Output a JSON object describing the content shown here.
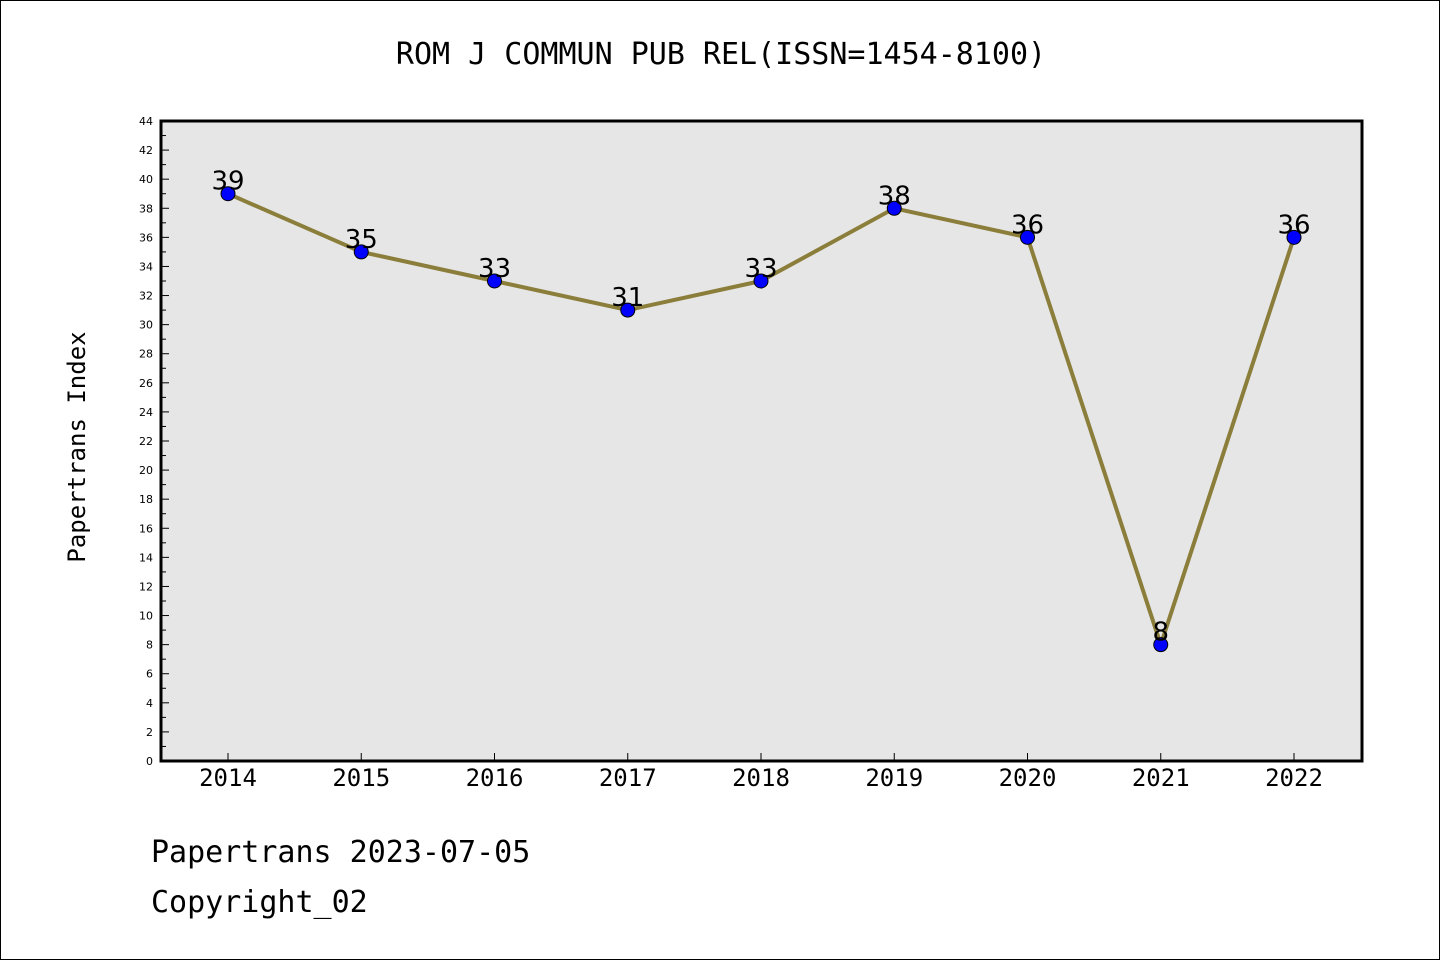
{
  "chart_data": {
    "type": "line",
    "title": "ROM J COMMUN PUB REL(ISSN=1454-8100)",
    "xlabel": "",
    "ylabel": "Papertrans Index",
    "categories": [
      "2014",
      "2015",
      "2016",
      "2017",
      "2018",
      "2019",
      "2020",
      "2021",
      "2022"
    ],
    "series": [
      {
        "values": [
          39,
          35,
          33,
          31,
          33,
          38,
          36,
          8,
          36
        ]
      }
    ],
    "ylim": [
      0,
      44
    ],
    "yticks": [
      0,
      2,
      4,
      6,
      8,
      10,
      12,
      14,
      16,
      18,
      20,
      22,
      24,
      26,
      28,
      30,
      32,
      34,
      36,
      38,
      40,
      42,
      44
    ],
    "data_labels": true,
    "grid": false,
    "legend": "none",
    "colors": {
      "line": "#8b7d3a",
      "marker": "#0000ff",
      "plot_bg": "#e6e6e6"
    }
  },
  "footer": {
    "date_line": "Papertrans 2023-07-05",
    "copyright": "Copyright_02"
  }
}
